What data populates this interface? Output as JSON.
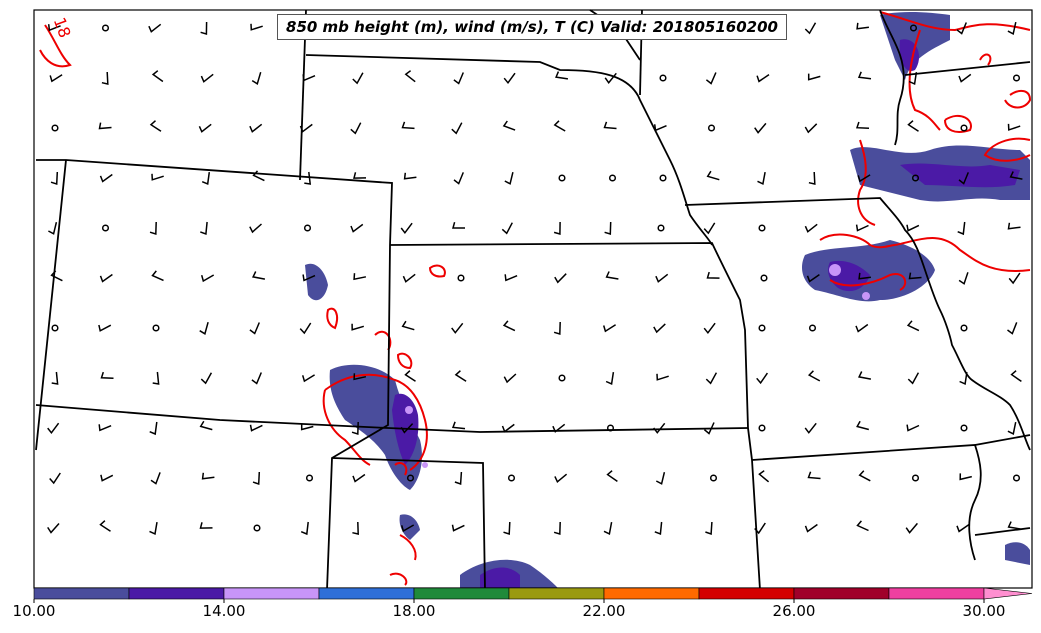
{
  "title": "850 mb height (m), wind (m/s), T (C) Valid: 201805160200",
  "contour_label": "18",
  "colorbar": {
    "labels": [
      "10.00",
      "14.00",
      "18.00",
      "22.00",
      "26.00",
      "30.00"
    ],
    "colors": [
      "#4a4d9c",
      "#4b1aa6",
      "#c895f8",
      "#2f6fd8",
      "#1f8a3a",
      "#9a9a10",
      "#ff6a00",
      "#d40000",
      "#a0002a",
      "#ef40a0",
      "#ff8fd0"
    ]
  },
  "colors": {
    "contour": "#ee0000",
    "borders": "#000000",
    "precip_light": "#4a4d9c",
    "precip_mid": "#4b1aa6",
    "precip_high": "#c895f8"
  }
}
